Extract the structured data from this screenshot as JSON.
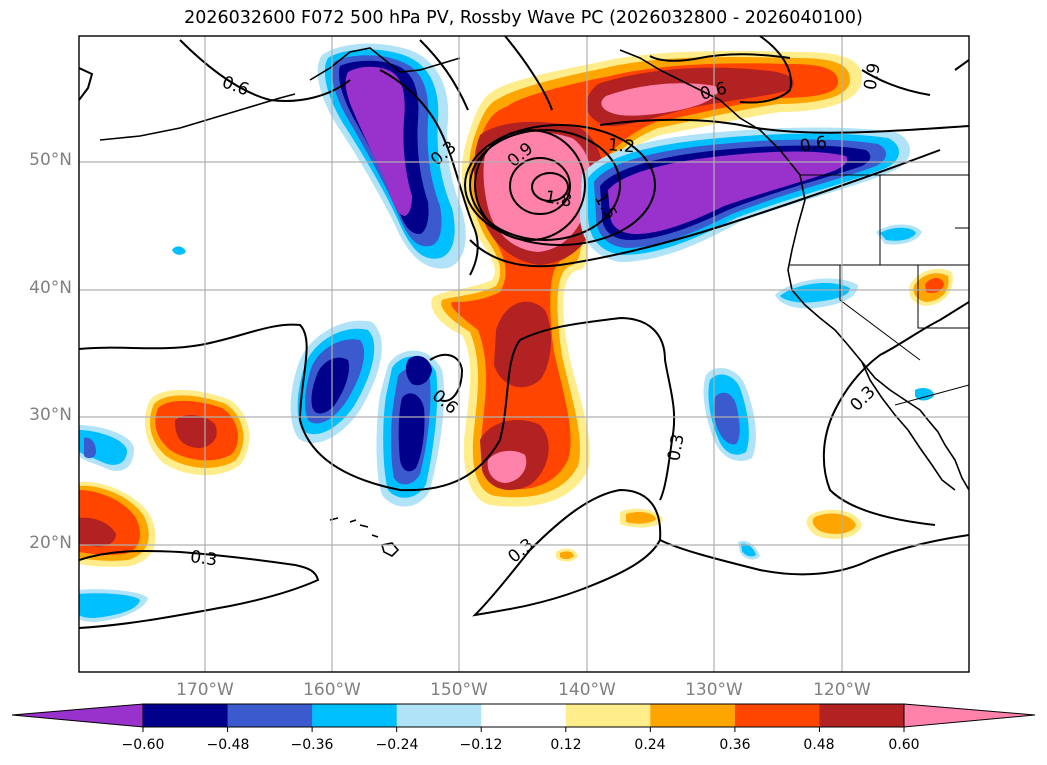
{
  "title": "2026032600 F072 500 hPa PV, Rossby Wave PC (2026032800 - 2026040100)",
  "lat_labels": [
    "50°N",
    "40°N",
    "30°N",
    "20°N"
  ],
  "lon_labels": [
    "170°W",
    "160°W",
    "150°W",
    "140°W",
    "130°W",
    "120°W"
  ],
  "contour_labels": [
    "0.6",
    "0.3",
    "0.9",
    "1.2",
    "1.8",
    "1.5",
    "0.6",
    "0.6",
    "0.9",
    "0.6",
    "0.3",
    "0.3",
    "0.3",
    "0.3"
  ],
  "colorbar": {
    "ticks": [
      "−0.60",
      "−0.48",
      "−0.36",
      "−0.24",
      "−0.12",
      "0.12",
      "0.24",
      "0.36",
      "0.48",
      "0.60"
    ],
    "colors": [
      "#9932cc",
      "#00008b",
      "#3a5acd",
      "#00bfff",
      "#b0e2f8",
      "#ffffff",
      "#ffec8b",
      "#ffa500",
      "#ff4500",
      "#b22222",
      "#ff82ab"
    ]
  },
  "colors": {
    "purple": "#9932cc",
    "navy": "#00008b",
    "royal": "#3a5acd",
    "sky": "#00bfff",
    "lightblue": "#b0e2f8",
    "lightyellow": "#ffec8b",
    "orange": "#ffa500",
    "orangered": "#ff4500",
    "firebrick": "#b22222",
    "pink": "#ff82ab"
  }
}
